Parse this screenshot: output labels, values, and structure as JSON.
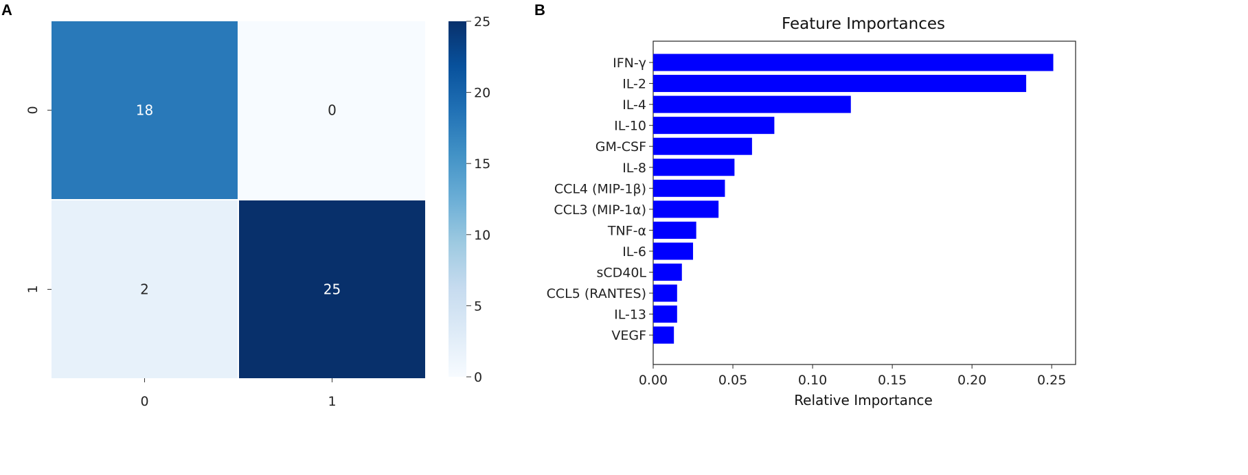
{
  "chart_data": [
    {
      "panel": "A",
      "type": "heatmap",
      "title": "",
      "xlabel": "",
      "ylabel": "",
      "x_tick_labels": [
        "0",
        "1"
      ],
      "y_tick_labels": [
        "0",
        "1"
      ],
      "matrix": [
        [
          18,
          0
        ],
        [
          2,
          25
        ]
      ],
      "colorbar": {
        "min": 0,
        "max": 25,
        "ticks": [
          0,
          5,
          10,
          15,
          20,
          25
        ],
        "colormap": "Blues"
      }
    },
    {
      "panel": "B",
      "type": "bar",
      "orientation": "horizontal",
      "title": "Feature Importances",
      "xlabel": "Relative Importance",
      "ylabel": "",
      "xlim": [
        0,
        0.265
      ],
      "x_ticks": [
        0.0,
        0.05,
        0.1,
        0.15,
        0.2,
        0.25
      ],
      "x_tick_labels": [
        "0.00",
        "0.05",
        "0.10",
        "0.15",
        "0.20",
        "0.25"
      ],
      "categories": [
        "IFN-γ",
        "IL-2",
        "IL-4",
        "IL-10",
        "GM-CSF",
        "IL-8",
        "CCL4 (MIP-1β)",
        "CCL3 (MIP-1α)",
        "TNF-α",
        "IL-6",
        "sCD40L",
        "CCL5 (RANTES)",
        "IL-13",
        "VEGF"
      ],
      "values": [
        0.251,
        0.234,
        0.124,
        0.076,
        0.062,
        0.051,
        0.045,
        0.041,
        0.027,
        0.025,
        0.018,
        0.015,
        0.015,
        0.013
      ],
      "bar_color": "#0000ff"
    }
  ]
}
